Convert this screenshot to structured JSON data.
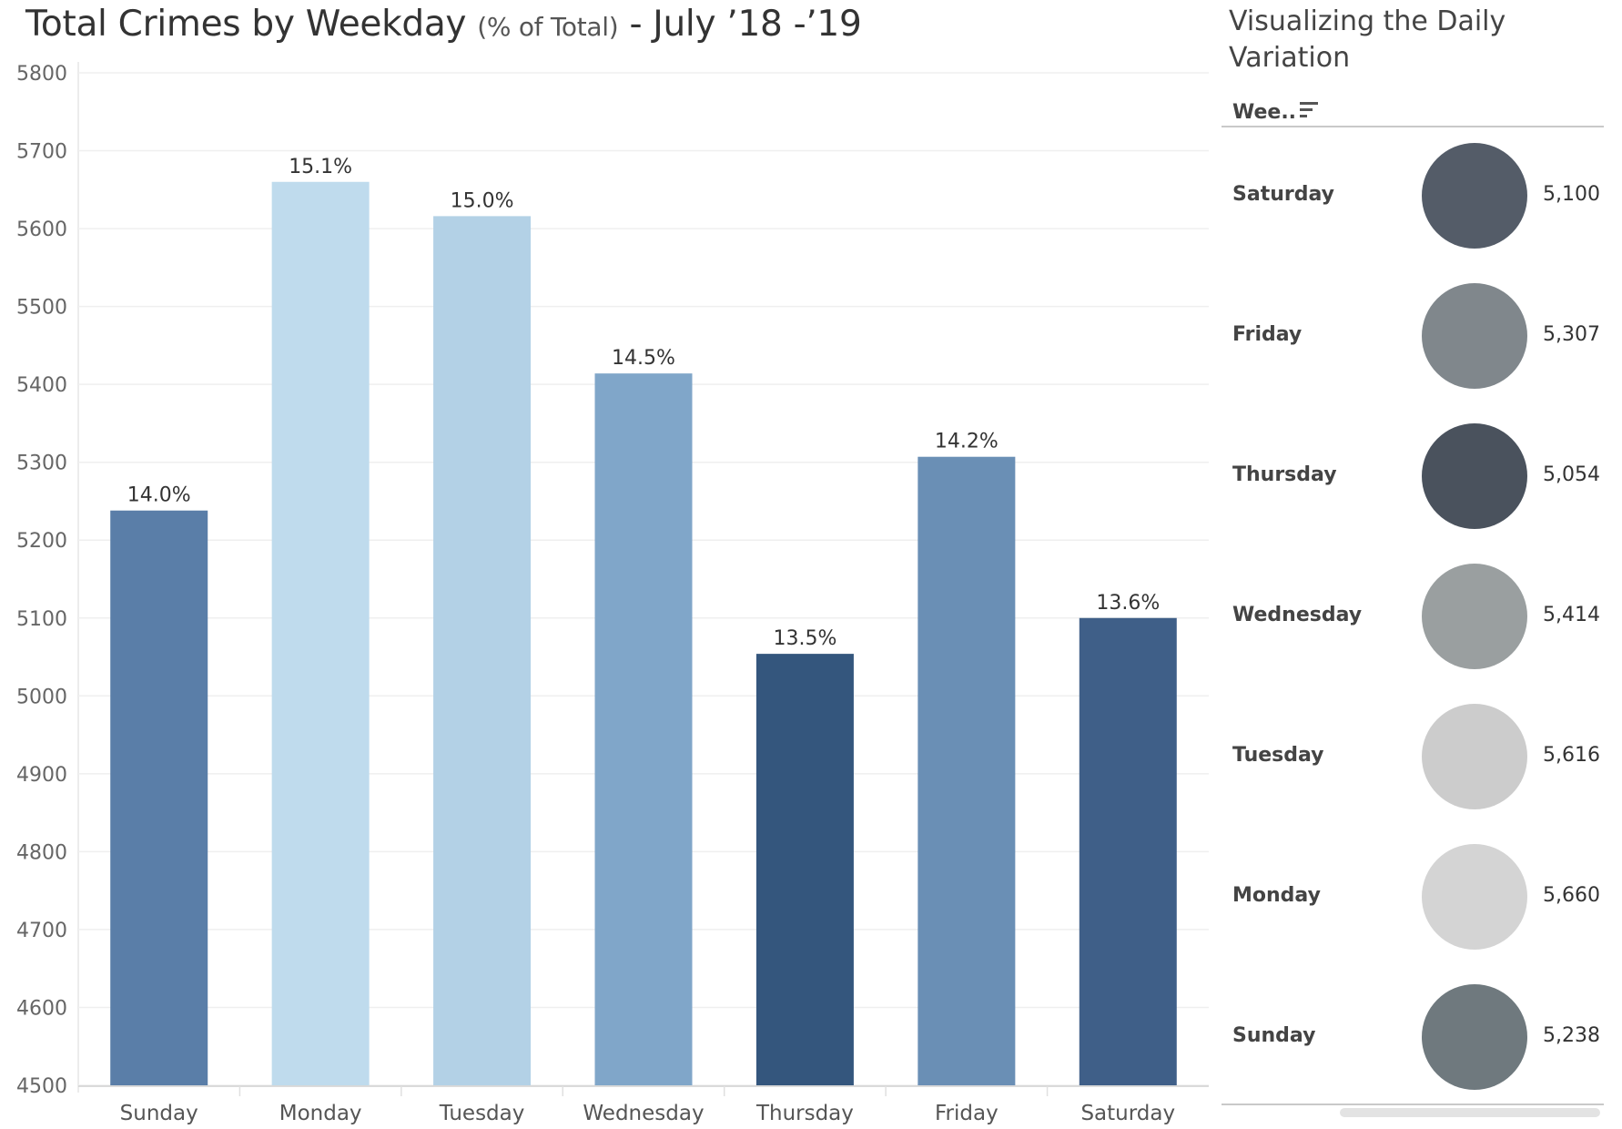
{
  "title": {
    "main_1": "Total Crimes by Weekday ",
    "small": "(% of Total)",
    "main_2": " - July ’18 -’19"
  },
  "panel": {
    "title": "Visualizing the Daily Variation",
    "header_label": "Wee..",
    "sort_icon": "sort-descending-icon",
    "rows": [
      {
        "day": "Saturday",
        "value": "5,100",
        "color": "#545c68"
      },
      {
        "day": "Friday",
        "value": "5,307",
        "color": "#80878c"
      },
      {
        "day": "Thursday",
        "value": "5,054",
        "color": "#4a525d"
      },
      {
        "day": "Wednesday",
        "value": "5,414",
        "color": "#9a9fa0"
      },
      {
        "day": "Tuesday",
        "value": "5,616",
        "color": "#cccccc"
      },
      {
        "day": "Monday",
        "value": "5,660",
        "color": "#d4d4d4"
      },
      {
        "day": "Sunday",
        "value": "5,238",
        "color": "#6f797e"
      }
    ]
  },
  "chart_data": {
    "type": "bar",
    "title": "Total Crimes by Weekday (% of Total) - July ’18 -’19",
    "xlabel": "",
    "ylabel": "",
    "categories": [
      "Sunday",
      "Monday",
      "Tuesday",
      "Wednesday",
      "Thursday",
      "Friday",
      "Saturday"
    ],
    "values": [
      5238,
      5660,
      5616,
      5414,
      5054,
      5307,
      5100
    ],
    "data_labels": [
      "14.0%",
      "15.1%",
      "15.0%",
      "14.5%",
      "13.5%",
      "14.2%",
      "13.6%"
    ],
    "colors": [
      "#5a7ea8",
      "#bfdbed",
      "#b3d1e6",
      "#80a6c9",
      "#34567d",
      "#6a8fb5",
      "#3f5f88"
    ],
    "ylim": [
      4500,
      5800
    ],
    "yticks": [
      4500,
      4600,
      4700,
      4800,
      4900,
      5000,
      5100,
      5200,
      5300,
      5400,
      5500,
      5600,
      5700,
      5800
    ],
    "grid": true,
    "legend": "none"
  }
}
